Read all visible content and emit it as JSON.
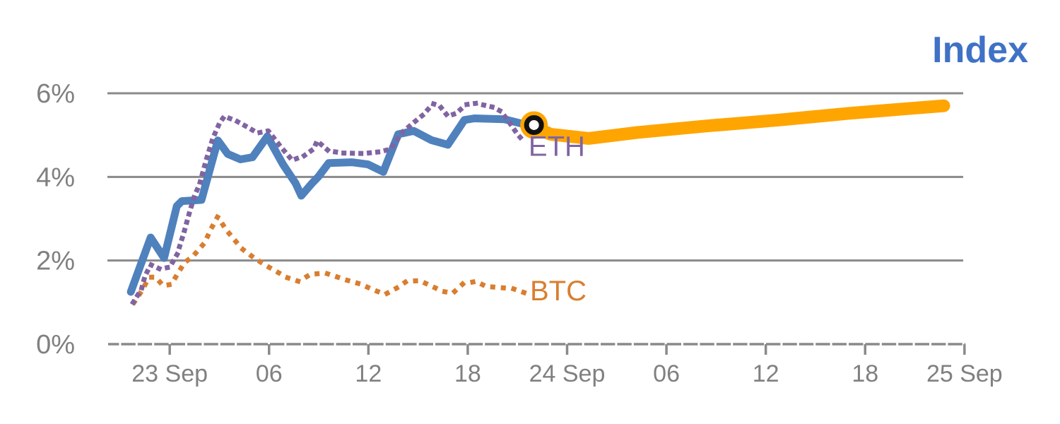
{
  "title": {
    "text": "Index",
    "color": "#3F72C6",
    "font_size": 52
  },
  "colors": {
    "background": "#FFFFFF",
    "grid": "#8A8A8A",
    "axis": "#8A8A8A",
    "tick_label": "#808080"
  },
  "chart_data": {
    "type": "line",
    "title": "Index",
    "xlabel": "",
    "ylabel": "",
    "x_axis": {
      "unit": "hours relative to 23 Sep 00:00",
      "range": [
        -3.72,
        48.05
      ],
      "ticks": [
        {
          "hour": 0,
          "label": "23 Sep"
        },
        {
          "hour": 6,
          "label": "06"
        },
        {
          "hour": 12,
          "label": "12"
        },
        {
          "hour": 18,
          "label": "18"
        },
        {
          "hour": 24,
          "label": "24 Sep"
        },
        {
          "hour": 30,
          "label": "06"
        },
        {
          "hour": 36,
          "label": "12"
        },
        {
          "hour": 42,
          "label": "18"
        },
        {
          "hour": 48,
          "label": "25 Sep"
        }
      ]
    },
    "y_axis": {
      "unit": "%",
      "range": [
        0,
        6.6
      ],
      "ticks": [
        {
          "pct": 0,
          "label": "0%"
        },
        {
          "pct": 2,
          "label": "2%"
        },
        {
          "pct": 4,
          "label": "4%"
        },
        {
          "pct": 6,
          "label": "6%"
        }
      ]
    },
    "legend_position": "inline-labels",
    "grid": "horizontal",
    "series": [
      {
        "name": "BTC",
        "color": "#D97E2F",
        "style": "dotted",
        "width": 7,
        "dot_spacing": 15,
        "label": {
          "text": "BTC",
          "hour": 21.76,
          "pct": 1.27,
          "font_size": 40
        },
        "points": [
          [
            -2.15,
            1.0
          ],
          [
            -1.65,
            1.3
          ],
          [
            -1.25,
            1.6
          ],
          [
            -0.85,
            1.6
          ],
          [
            -0.4,
            1.4
          ],
          [
            0.1,
            1.43
          ],
          [
            0.5,
            1.7
          ],
          [
            0.9,
            1.95
          ],
          [
            1.4,
            2.1
          ],
          [
            2.1,
            2.42
          ],
          [
            2.5,
            2.76
          ],
          [
            2.9,
            3.05
          ],
          [
            3.4,
            2.74
          ],
          [
            3.9,
            2.5
          ],
          [
            4.4,
            2.27
          ],
          [
            5.1,
            2.06
          ],
          [
            5.9,
            1.86
          ],
          [
            7.1,
            1.59
          ],
          [
            7.8,
            1.5
          ],
          [
            8.5,
            1.67
          ],
          [
            9.4,
            1.7
          ],
          [
            10.7,
            1.53
          ],
          [
            11.5,
            1.44
          ],
          [
            12.3,
            1.3
          ],
          [
            13.0,
            1.19
          ],
          [
            13.7,
            1.34
          ],
          [
            14.3,
            1.5
          ],
          [
            15.1,
            1.52
          ],
          [
            15.8,
            1.39
          ],
          [
            16.5,
            1.26
          ],
          [
            17.1,
            1.22
          ],
          [
            17.7,
            1.44
          ],
          [
            18.5,
            1.5
          ],
          [
            19.1,
            1.38
          ],
          [
            20.0,
            1.35
          ],
          [
            20.7,
            1.33
          ],
          [
            21.5,
            1.22
          ]
        ]
      },
      {
        "name": "Index",
        "color": "#4F81BD",
        "style": "solid",
        "width": 11,
        "points": [
          [
            -2.35,
            1.25
          ],
          [
            -1.15,
            2.55
          ],
          [
            -0.34,
            2.06
          ],
          [
            0.43,
            3.3
          ],
          [
            0.73,
            3.42
          ],
          [
            1.92,
            3.45
          ],
          [
            2.91,
            4.87
          ],
          [
            3.5,
            4.55
          ],
          [
            4.27,
            4.42
          ],
          [
            5.0,
            4.47
          ],
          [
            5.9,
            4.97
          ],
          [
            6.84,
            4.3
          ],
          [
            7.6,
            3.85
          ],
          [
            7.95,
            3.55
          ],
          [
            8.6,
            3.85
          ],
          [
            8.97,
            4.0
          ],
          [
            9.6,
            4.33
          ],
          [
            11.0,
            4.35
          ],
          [
            11.97,
            4.3
          ],
          [
            12.9,
            4.12
          ],
          [
            13.8,
            5.02
          ],
          [
            14.74,
            5.1
          ],
          [
            15.8,
            4.88
          ],
          [
            16.8,
            4.77
          ],
          [
            17.8,
            5.36
          ],
          [
            18.4,
            5.4
          ],
          [
            20.2,
            5.38
          ],
          [
            21.2,
            5.28
          ],
          [
            22.0,
            5.22
          ]
        ]
      },
      {
        "name": "ETH",
        "color": "#8064A2",
        "style": "dotted",
        "width": 7,
        "dot_spacing": 12,
        "label": {
          "text": "ETH",
          "hour": 21.67,
          "pct": 4.72,
          "font_size": 40
        },
        "points": [
          [
            -2.2,
            1.0
          ],
          [
            -1.7,
            1.32
          ],
          [
            -1.5,
            1.62
          ],
          [
            -1.15,
            1.9
          ],
          [
            -0.6,
            1.8
          ],
          [
            0.0,
            1.84
          ],
          [
            0.45,
            2.15
          ],
          [
            0.85,
            2.66
          ],
          [
            1.2,
            3.16
          ],
          [
            1.5,
            3.55
          ],
          [
            1.8,
            3.82
          ],
          [
            2.2,
            4.4
          ],
          [
            2.6,
            4.92
          ],
          [
            3.0,
            5.28
          ],
          [
            3.3,
            5.45
          ],
          [
            4.05,
            5.33
          ],
          [
            4.7,
            5.19
          ],
          [
            5.3,
            5.05
          ],
          [
            5.95,
            5.1
          ],
          [
            6.75,
            4.7
          ],
          [
            7.4,
            4.4
          ],
          [
            8.1,
            4.5
          ],
          [
            8.7,
            4.67
          ],
          [
            8.9,
            4.86
          ],
          [
            9.6,
            4.62
          ],
          [
            10.5,
            4.57
          ],
          [
            11.7,
            4.56
          ],
          [
            12.7,
            4.6
          ],
          [
            13.3,
            4.66
          ],
          [
            14.1,
            5.08
          ],
          [
            14.8,
            5.32
          ],
          [
            15.3,
            5.48
          ],
          [
            15.9,
            5.75
          ],
          [
            16.3,
            5.7
          ],
          [
            16.8,
            5.45
          ],
          [
            17.3,
            5.52
          ],
          [
            17.9,
            5.73
          ],
          [
            18.5,
            5.76
          ],
          [
            19.5,
            5.67
          ],
          [
            20.0,
            5.57
          ],
          [
            20.5,
            5.31
          ],
          [
            21.0,
            5.02
          ],
          [
            21.5,
            4.8
          ]
        ]
      },
      {
        "name": "Index forecast",
        "color": "#FFA502",
        "style": "solid",
        "width": 18,
        "points": [
          [
            22.0,
            5.2
          ],
          [
            23.0,
            5.02
          ],
          [
            25.3,
            4.92
          ],
          [
            28.2,
            5.06
          ],
          [
            32.5,
            5.22
          ],
          [
            36.8,
            5.36
          ],
          [
            41.0,
            5.52
          ],
          [
            46.75,
            5.7
          ]
        ]
      }
    ],
    "marker": {
      "name": "current-point",
      "hour": 22.0,
      "pct": 5.24,
      "outer_color": "#FFA502",
      "ring_color": "#111111",
      "core_color": "#FFFFFF"
    }
  }
}
